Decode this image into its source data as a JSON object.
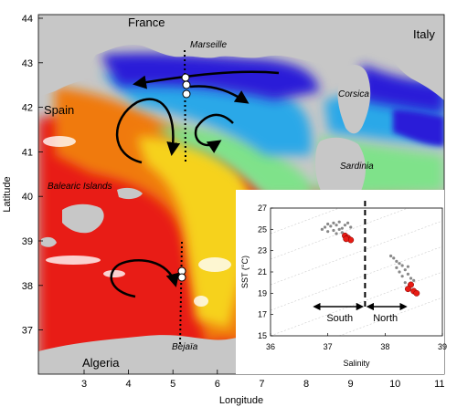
{
  "map": {
    "xlabel": "Longitude",
    "ylabel": "Latitude",
    "x_ticks": [
      "3",
      "4",
      "5",
      "6",
      "7",
      "8",
      "9",
      "10",
      "11"
    ],
    "y_ticks": [
      "44",
      "43",
      "42",
      "41",
      "40",
      "39",
      "38",
      "37"
    ],
    "places": {
      "france": "France",
      "italy": "Italy",
      "spain": "Spain",
      "algeria": "Algeria",
      "marseille": "Marseille",
      "corsica": "Corsica",
      "sardinia": "Sardinia",
      "balearic": "Balearic Islands",
      "bejaia": "Bejaïa"
    },
    "colors": {
      "land": "#c7c7c7",
      "cold": "#2a1ad8",
      "cool": "#2aa8e8",
      "mild": "#7fe28a",
      "warm": "#f6d21a",
      "hot": "#f07a10",
      "hottest": "#e81c14"
    }
  },
  "chart_data": {
    "type": "scatter",
    "xlabel": "Salinity",
    "ylabel": "SST (°C)",
    "xlim": [
      36,
      39
    ],
    "ylim": [
      15,
      27
    ],
    "x_ticks": [
      "36",
      "37",
      "38",
      "39"
    ],
    "y_ticks": [
      "27",
      "25",
      "23",
      "21",
      "19",
      "17",
      "15"
    ],
    "divider_x": 37.65,
    "regions": {
      "south": "South",
      "north": "North"
    },
    "series": [
      {
        "color": "#888888",
        "points": [
          [
            36.95,
            25.2
          ],
          [
            37.0,
            25.5
          ],
          [
            37.05,
            25.3
          ],
          [
            37.1,
            25.6
          ],
          [
            37.15,
            25.4
          ],
          [
            37.2,
            25.7
          ],
          [
            37.25,
            25.1
          ],
          [
            37.1,
            24.9
          ],
          [
            37.3,
            25.4
          ],
          [
            37.2,
            25.0
          ],
          [
            37.35,
            25.6
          ],
          [
            37.0,
            24.8
          ],
          [
            37.15,
            24.6
          ],
          [
            37.4,
            25.2
          ],
          [
            36.9,
            25.0
          ],
          [
            37.25,
            24.7
          ]
        ]
      },
      {
        "color": "#e81c14",
        "points": [
          [
            37.3,
            24.4
          ],
          [
            37.35,
            24.2
          ],
          [
            37.4,
            24.0
          ],
          [
            37.32,
            24.1
          ]
        ]
      },
      {
        "color": "#888888",
        "points": [
          [
            38.1,
            22.5
          ],
          [
            38.15,
            22.3
          ],
          [
            38.2,
            22.0
          ],
          [
            38.25,
            21.8
          ],
          [
            38.3,
            21.6
          ],
          [
            38.35,
            21.2
          ],
          [
            38.4,
            20.8
          ],
          [
            38.2,
            21.4
          ],
          [
            38.3,
            20.6
          ],
          [
            38.45,
            20.4
          ],
          [
            38.35,
            20.0
          ],
          [
            38.5,
            20.2
          ],
          [
            38.25,
            21.0
          ],
          [
            38.4,
            21.5
          ]
        ]
      },
      {
        "color": "#e81c14",
        "points": [
          [
            38.45,
            19.8
          ],
          [
            38.5,
            19.2
          ],
          [
            38.55,
            19.0
          ],
          [
            38.4,
            19.4
          ]
        ]
      }
    ]
  }
}
